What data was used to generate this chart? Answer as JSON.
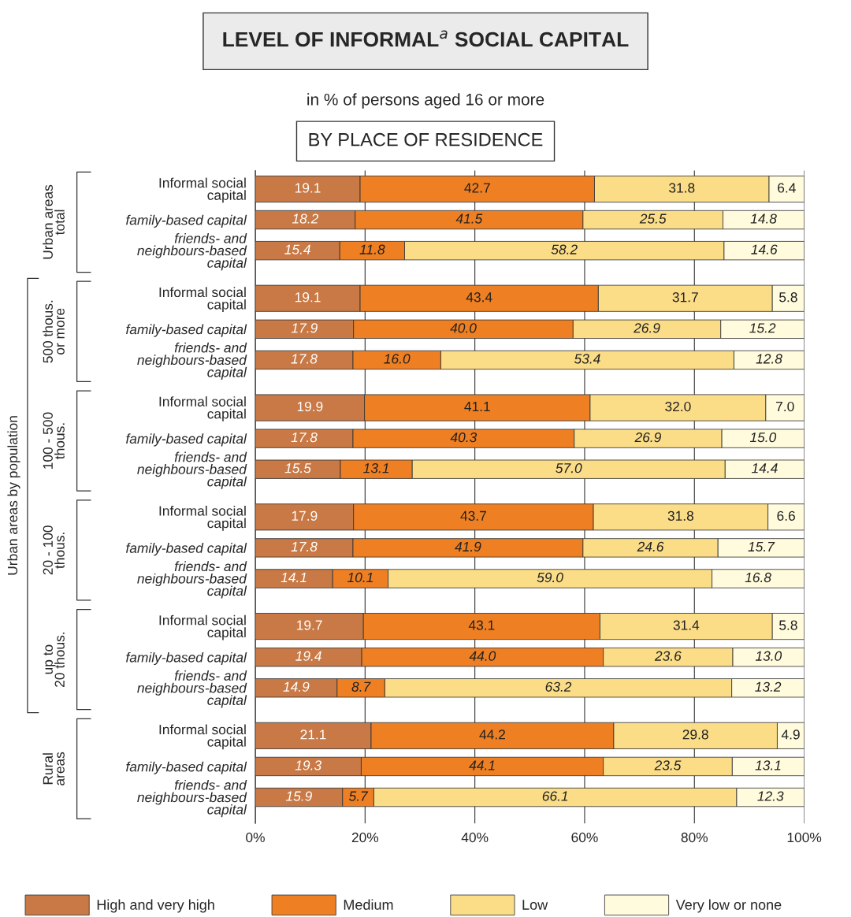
{
  "chart_data": {
    "type": "bar",
    "orientation": "horizontal",
    "stacked": true,
    "title": "LEVEL OF INFORMAL$^{a}$ SOCIAL CAPITAL",
    "subtitle": "in % of persons aged 16 or more",
    "categories": [
      "Informal social\ncapital",
      "family-based capital",
      "friends- and\nneighbours-based\ncapital",
      "Informal social\ncapital",
      "family-based capital",
      "friends- and\nneighbours-based\ncapital",
      "Informal social\ncapital",
      "family-based capital",
      "friends- and\nneighbours-based\ncapital",
      "Informal social\ncapital",
      "family-based capital",
      "friends- and\nneighbours-based\ncapital",
      "Informal social\ncapital",
      "family-based capital",
      "friends- and\nneighbours-based\ncapital",
      "Informal social\ncapital",
      "family-based capital",
      "friends- and\nneighbours-based\ncapital"
    ],
    "series": [
      {
        "name": "High and very high",
        "color": "#c87945",
        "values": [
          19.1,
          18.2,
          15.4,
          19.1,
          17.9,
          17.8,
          19.9,
          17.8,
          15.5,
          17.9,
          17.8,
          14.1,
          19.7,
          19.4,
          14.9,
          21.1,
          19.3,
          15.9
        ],
        "value_labels": [
          "19.1",
          "18.2",
          "15.4",
          "19.1",
          "17.9",
          "17.8",
          "19.9",
          "17.8",
          "15.5",
          "17.9",
          "17.8",
          "14.1",
          "19.7",
          "19.4",
          "14.9",
          "21.1",
          "19.3",
          "15.9"
        ]
      },
      {
        "name": "Medium",
        "color": "#ee7f22",
        "values": [
          42.7,
          41.5,
          11.8,
          43.4,
          40.0,
          16.0,
          41.1,
          40.3,
          13.1,
          43.7,
          41.9,
          10.1,
          43.1,
          44.0,
          8.7,
          44.2,
          44.1,
          5.7
        ],
        "value_labels": [
          "42.7",
          "41.5",
          "11.8",
          "43.4",
          "40.0",
          "16.0",
          "41.1",
          "40.3",
          "13.1",
          "43.7",
          "41.9",
          "10.1",
          "43.1",
          "44.0",
          "8.7",
          "44.2",
          "44.1",
          "5.7"
        ]
      },
      {
        "name": "Low",
        "color": "#fbdd88",
        "values": [
          31.8,
          25.5,
          58.2,
          31.7,
          26.9,
          53.4,
          32.0,
          26.9,
          57.0,
          31.8,
          24.6,
          59.0,
          31.4,
          23.6,
          63.2,
          29.8,
          23.5,
          66.1
        ],
        "value_labels": [
          "31.8",
          "25.5",
          "58.2",
          "31.7",
          "26.9",
          "53.4",
          "32.0",
          "26.9",
          "57.0",
          "31.8",
          "24.6",
          "59.0",
          "31.4",
          "23.6",
          "63.2",
          "29.8",
          "23.5",
          "66.1"
        ]
      },
      {
        "name": "Very low or none",
        "color": "#fffbdc",
        "values": [
          6.4,
          14.8,
          14.6,
          5.8,
          15.2,
          12.8,
          7.0,
          15.0,
          14.4,
          6.6,
          15.7,
          16.8,
          5.8,
          13.0,
          13.2,
          4.9,
          13.1,
          12.3
        ],
        "value_labels": [
          "6.4",
          "14.8",
          "14.6",
          "5.8",
          "15.2",
          "12.8",
          "7.0",
          "15.0",
          "14.4",
          "6.6",
          "15.7",
          "16.8",
          "5.8",
          "13.0",
          "13.2",
          "4.9",
          "13.1",
          "12.3"
        ]
      }
    ],
    "xlim": [
      0,
      100
    ],
    "xticks": [
      {
        "value": 0,
        "label": "0%"
      },
      {
        "value": 20,
        "label": "20%"
      },
      {
        "value": 40,
        "label": "40%"
      },
      {
        "value": 60,
        "label": "60%"
      },
      {
        "value": 80,
        "label": "80%"
      },
      {
        "value": 100,
        "label": "100%"
      }
    ],
    "grid": "x",
    "legend": "bottom",
    "annotations": [
      "BY PLACE OF RESIDENCE",
      "Urban areas\ntotal",
      "500 thous.\nor more",
      "100 - 500\nthous.",
      "20 - 100\nthous.",
      "up to\n20 thous.",
      "Rural\nareas",
      "Urban areas by population"
    ]
  }
}
